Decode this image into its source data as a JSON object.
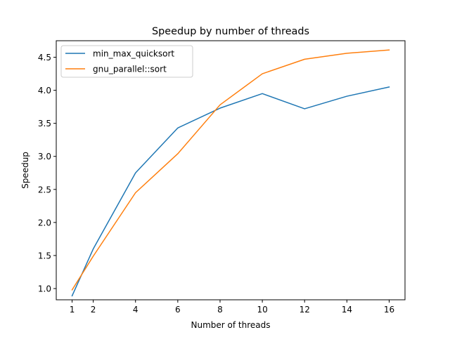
{
  "chart_data": {
    "type": "line",
    "title": "Speedup by number of threads",
    "xlabel": "Number of threads",
    "ylabel": "Speedup",
    "x": [
      1,
      2,
      4,
      6,
      8,
      10,
      12,
      14,
      16
    ],
    "xticks": [
      "1",
      "2",
      "4",
      "6",
      "8",
      "10",
      "12",
      "14",
      "16"
    ],
    "yticks": [
      "1.0",
      "1.5",
      "2.0",
      "2.5",
      "3.0",
      "3.5",
      "4.0",
      "4.5"
    ],
    "xlim": [
      0.25,
      16.75
    ],
    "ylim": [
      0.83,
      4.75
    ],
    "grid": false,
    "legend_position": "top-left",
    "series": [
      {
        "name": "min_max_quicksort",
        "color": "#1f77b4",
        "values": [
          0.89,
          1.6,
          2.75,
          3.43,
          3.73,
          3.95,
          3.72,
          3.91,
          4.05
        ]
      },
      {
        "name": "gnu_parallel::sort",
        "color": "#ff7f0e",
        "values": [
          0.98,
          1.49,
          2.45,
          3.04,
          3.78,
          4.25,
          4.47,
          4.56,
          4.61
        ]
      }
    ]
  }
}
